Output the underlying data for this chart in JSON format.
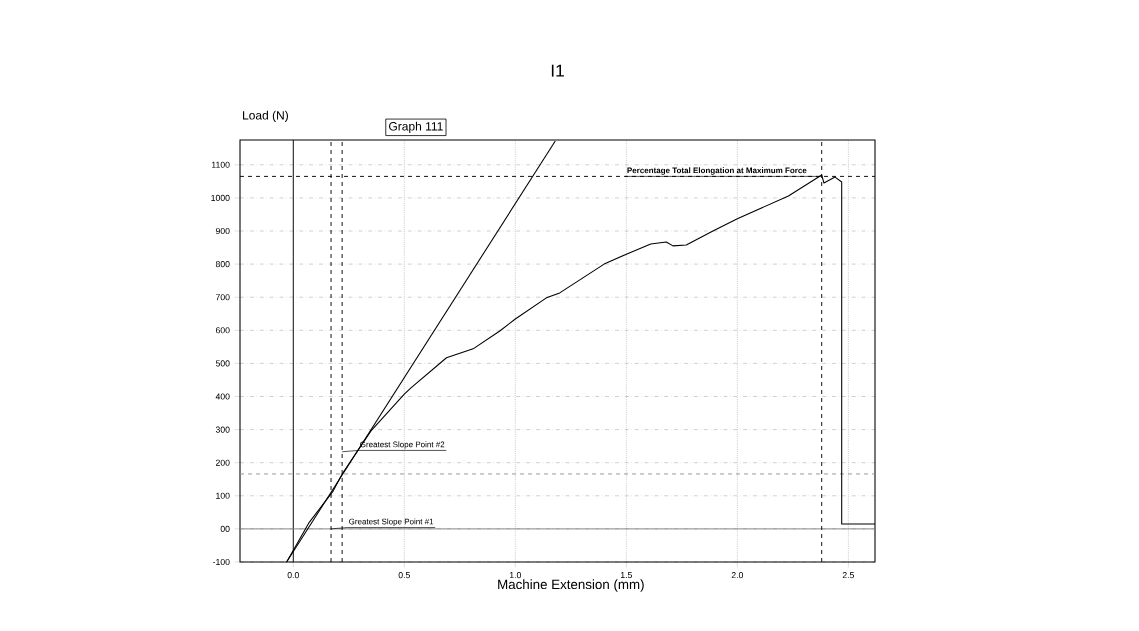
{
  "chart_data": {
    "type": "line",
    "title": "I1",
    "xlabel": "Machine Extension (mm)",
    "ylabel": "Load (N)",
    "xlim": [
      -0.24,
      2.62
    ],
    "ylim": [
      -100,
      1175
    ],
    "xticks": [
      {
        "value": 0,
        "label": "0.0"
      },
      0.5,
      {
        "value": 1,
        "label": "1.0"
      },
      1.5,
      {
        "value": 2,
        "label": "2.0"
      },
      2.5
    ],
    "yticks": [
      -100,
      {
        "value": 0,
        "label": "00"
      },
      100,
      200,
      300,
      400,
      500,
      600,
      700,
      800,
      900,
      1000,
      1100
    ],
    "grid": true,
    "series": [
      {
        "color": "#000000",
        "x": [
          -0.03,
          0.07,
          0.18,
          0.22,
          0.35,
          0.5,
          0.53,
          0.69,
          0.81,
          0.93,
          1.0,
          1.14,
          1.2,
          1.4,
          1.5,
          1.61,
          1.68,
          1.71,
          1.77,
          1.89,
          2.0,
          2.23,
          2.38,
          2.39,
          2.44,
          2.47,
          2.47,
          2.62
        ],
        "values": [
          -100,
          18,
          115,
          166,
          296,
          407,
          426,
          517,
          544,
          598,
          634,
          698,
          713,
          800,
          830,
          861,
          867,
          855,
          858,
          900,
          937,
          1006,
          1069,
          1045,
          1063,
          1048,
          15,
          15
        ]
      },
      {
        "type": "line",
        "color": "#000000",
        "x": [
          -0.03,
          1.18
        ],
        "values": [
          -100,
          1172
        ]
      }
    ],
    "ref_lines": [
      {
        "axis": "x",
        "value": 0,
        "color": "#000000",
        "line_style": "solid"
      },
      {
        "axis": "y",
        "value": 0,
        "color": "#808080",
        "line_style": "solid"
      },
      {
        "axis": "y",
        "value": 1065,
        "color": "#000000",
        "line_style": "dashed"
      },
      {
        "axis": "x",
        "value": 2.38,
        "color": "#000000",
        "line_style": "dashed"
      },
      {
        "axis": "x",
        "value": 0.17,
        "color": "#000000",
        "line_style": "dashed"
      },
      {
        "axis": "x",
        "value": 0.22,
        "color": "#000000",
        "line_style": "dashed"
      },
      {
        "axis": "y",
        "value": 166,
        "color": "#909090",
        "line_style": "dashed"
      }
    ],
    "annotations": [
      "Graph 111",
      {
        "text": "Greatest Slope Point #1",
        "x": 0.17,
        "y": 0
      },
      {
        "text": "Greatest Slope Point #2",
        "x": 0.22,
        "y": 233
      },
      {
        "text": "Percentage Total Elongation at Maximum Force",
        "x": 2.38,
        "y": 1065
      }
    ]
  }
}
